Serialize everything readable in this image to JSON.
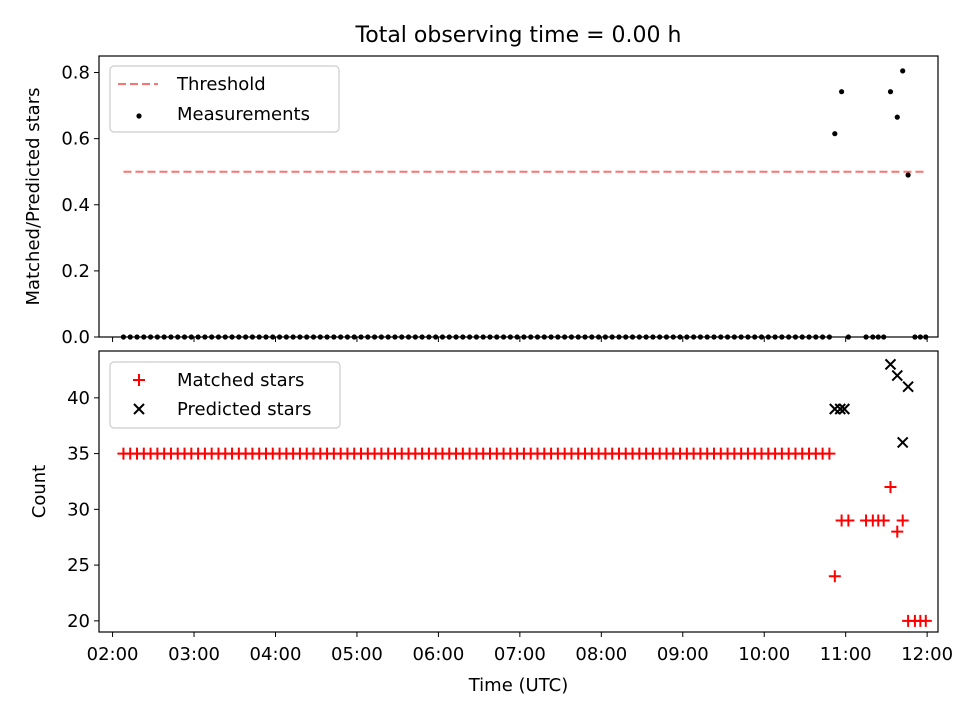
{
  "figure_title": "Total observing time = 0.00 h",
  "colors": {
    "threshold": "#ff7070",
    "measurement": "#000000",
    "matched": "#ff0000",
    "predicted": "#000000"
  },
  "chart_data": [
    {
      "type": "scatter",
      "ylabel": "Matched/Predicted stars",
      "xlim": [
        "01:50",
        "12:08"
      ],
      "ylim": [
        0,
        0.85
      ],
      "yticks": [
        "0.0",
        "0.2",
        "0.4",
        "0.6",
        "0.8"
      ],
      "legend": {
        "placement": "top-left",
        "entries": [
          "Threshold",
          "Measurements"
        ]
      },
      "threshold": {
        "name": "Threshold",
        "y": 0.5,
        "x_start": "02:08",
        "x_end": "11:58"
      },
      "series": [
        {
          "name": "Measurements",
          "x": [
            "02:08",
            "02:13",
            "02:18",
            "02:23",
            "02:28",
            "02:33",
            "02:38",
            "02:43",
            "02:48",
            "02:53",
            "02:58",
            "03:03",
            "03:08",
            "03:13",
            "03:18",
            "03:23",
            "03:28",
            "03:33",
            "03:38",
            "03:43",
            "03:48",
            "03:53",
            "03:58",
            "04:03",
            "04:08",
            "04:13",
            "04:18",
            "04:23",
            "04:28",
            "04:33",
            "04:38",
            "04:43",
            "04:48",
            "04:53",
            "04:58",
            "05:03",
            "05:08",
            "05:13",
            "05:18",
            "05:23",
            "05:28",
            "05:33",
            "05:38",
            "05:43",
            "05:48",
            "05:53",
            "05:58",
            "06:03",
            "06:08",
            "06:13",
            "06:18",
            "06:23",
            "06:28",
            "06:33",
            "06:38",
            "06:43",
            "06:48",
            "06:53",
            "06:58",
            "07:03",
            "07:08",
            "07:13",
            "07:18",
            "07:23",
            "07:28",
            "07:33",
            "07:38",
            "07:43",
            "07:48",
            "07:53",
            "07:58",
            "08:03",
            "08:08",
            "08:13",
            "08:18",
            "08:23",
            "08:28",
            "08:33",
            "08:38",
            "08:43",
            "08:48",
            "08:53",
            "08:58",
            "09:03",
            "09:08",
            "09:13",
            "09:18",
            "09:23",
            "09:28",
            "09:33",
            "09:38",
            "09:43",
            "09:48",
            "09:53",
            "09:58",
            "10:03",
            "10:08",
            "10:13",
            "10:18",
            "10:23",
            "10:28",
            "10:33",
            "10:38",
            "10:43",
            "10:48",
            "10:52",
            "10:57",
            "11:02",
            "11:15",
            "11:20",
            "11:24",
            "11:28",
            "11:33",
            "11:38",
            "11:42",
            "11:46",
            "11:51",
            "11:55",
            "11:59"
          ],
          "y": [
            0,
            0,
            0,
            0,
            0,
            0,
            0,
            0,
            0,
            0,
            0,
            0,
            0,
            0,
            0,
            0,
            0,
            0,
            0,
            0,
            0,
            0,
            0,
            0,
            0,
            0,
            0,
            0,
            0,
            0,
            0,
            0,
            0,
            0,
            0,
            0,
            0,
            0,
            0,
            0,
            0,
            0,
            0,
            0,
            0,
            0,
            0,
            0,
            0,
            0,
            0,
            0,
            0,
            0,
            0,
            0,
            0,
            0,
            0,
            0,
            0,
            0,
            0,
            0,
            0,
            0,
            0,
            0,
            0,
            0,
            0,
            0,
            0,
            0,
            0,
            0,
            0,
            0,
            0,
            0,
            0,
            0,
            0,
            0,
            0,
            0,
            0,
            0,
            0,
            0,
            0,
            0,
            0,
            0,
            0,
            0,
            0,
            0,
            0,
            0,
            0,
            0,
            0,
            0,
            0,
            0.615,
            0.742,
            0,
            0,
            0,
            0,
            0,
            0.742,
            0.665,
            0.805,
            0.49,
            0,
            0,
            0
          ]
        }
      ]
    },
    {
      "type": "scatter",
      "ylabel": "Count",
      "xlabel": "Time (UTC)",
      "xlim": [
        "01:50",
        "12:08"
      ],
      "ylim": [
        19,
        44.2
      ],
      "yticks": [
        "20",
        "25",
        "30",
        "35",
        "40"
      ],
      "xticks": [
        "02:00",
        "03:00",
        "04:00",
        "05:00",
        "06:00",
        "07:00",
        "08:00",
        "09:00",
        "10:00",
        "11:00",
        "12:00"
      ],
      "legend": {
        "placement": "top-left",
        "entries": [
          "Matched stars",
          "Predicted stars"
        ]
      },
      "series": [
        {
          "name": "Matched stars",
          "marker": "+",
          "x": [
            "02:08",
            "02:13",
            "02:18",
            "02:23",
            "02:28",
            "02:33",
            "02:38",
            "02:43",
            "02:48",
            "02:53",
            "02:58",
            "03:03",
            "03:08",
            "03:13",
            "03:18",
            "03:23",
            "03:28",
            "03:33",
            "03:38",
            "03:43",
            "03:48",
            "03:53",
            "03:58",
            "04:03",
            "04:08",
            "04:13",
            "04:18",
            "04:23",
            "04:28",
            "04:33",
            "04:38",
            "04:43",
            "04:48",
            "04:53",
            "04:58",
            "05:03",
            "05:08",
            "05:13",
            "05:18",
            "05:23",
            "05:28",
            "05:33",
            "05:38",
            "05:43",
            "05:48",
            "05:53",
            "05:58",
            "06:03",
            "06:08",
            "06:13",
            "06:18",
            "06:23",
            "06:28",
            "06:33",
            "06:38",
            "06:43",
            "06:48",
            "06:53",
            "06:58",
            "07:03",
            "07:08",
            "07:13",
            "07:18",
            "07:23",
            "07:28",
            "07:33",
            "07:38",
            "07:43",
            "07:48",
            "07:53",
            "07:58",
            "08:03",
            "08:08",
            "08:13",
            "08:18",
            "08:23",
            "08:28",
            "08:33",
            "08:38",
            "08:43",
            "08:48",
            "08:53",
            "08:58",
            "09:03",
            "09:08",
            "09:13",
            "09:18",
            "09:23",
            "09:28",
            "09:33",
            "09:38",
            "09:43",
            "09:48",
            "09:53",
            "09:58",
            "10:03",
            "10:08",
            "10:13",
            "10:18",
            "10:23",
            "10:28",
            "10:33",
            "10:38",
            "10:43",
            "10:48",
            "10:52",
            "10:57",
            "11:02",
            "11:15",
            "11:20",
            "11:24",
            "11:28",
            "11:33",
            "11:38",
            "11:42",
            "11:46",
            "11:51",
            "11:55",
            "11:59"
          ],
          "y": [
            35,
            35,
            35,
            35,
            35,
            35,
            35,
            35,
            35,
            35,
            35,
            35,
            35,
            35,
            35,
            35,
            35,
            35,
            35,
            35,
            35,
            35,
            35,
            35,
            35,
            35,
            35,
            35,
            35,
            35,
            35,
            35,
            35,
            35,
            35,
            35,
            35,
            35,
            35,
            35,
            35,
            35,
            35,
            35,
            35,
            35,
            35,
            35,
            35,
            35,
            35,
            35,
            35,
            35,
            35,
            35,
            35,
            35,
            35,
            35,
            35,
            35,
            35,
            35,
            35,
            35,
            35,
            35,
            35,
            35,
            35,
            35,
            35,
            35,
            35,
            35,
            35,
            35,
            35,
            35,
            35,
            35,
            35,
            35,
            35,
            35,
            35,
            35,
            35,
            35,
            35,
            35,
            35,
            35,
            35,
            35,
            35,
            35,
            35,
            35,
            35,
            35,
            35,
            35,
            35,
            24,
            29,
            29,
            29,
            29,
            29,
            29,
            32,
            28,
            29,
            20,
            20,
            20,
            20
          ]
        },
        {
          "name": "Predicted stars",
          "marker": "x",
          "x": [
            "10:52",
            "10:56",
            "10:59",
            "11:33",
            "11:38",
            "11:42",
            "11:46"
          ],
          "y": [
            39,
            39,
            39,
            43,
            42,
            36,
            41
          ]
        }
      ]
    }
  ]
}
